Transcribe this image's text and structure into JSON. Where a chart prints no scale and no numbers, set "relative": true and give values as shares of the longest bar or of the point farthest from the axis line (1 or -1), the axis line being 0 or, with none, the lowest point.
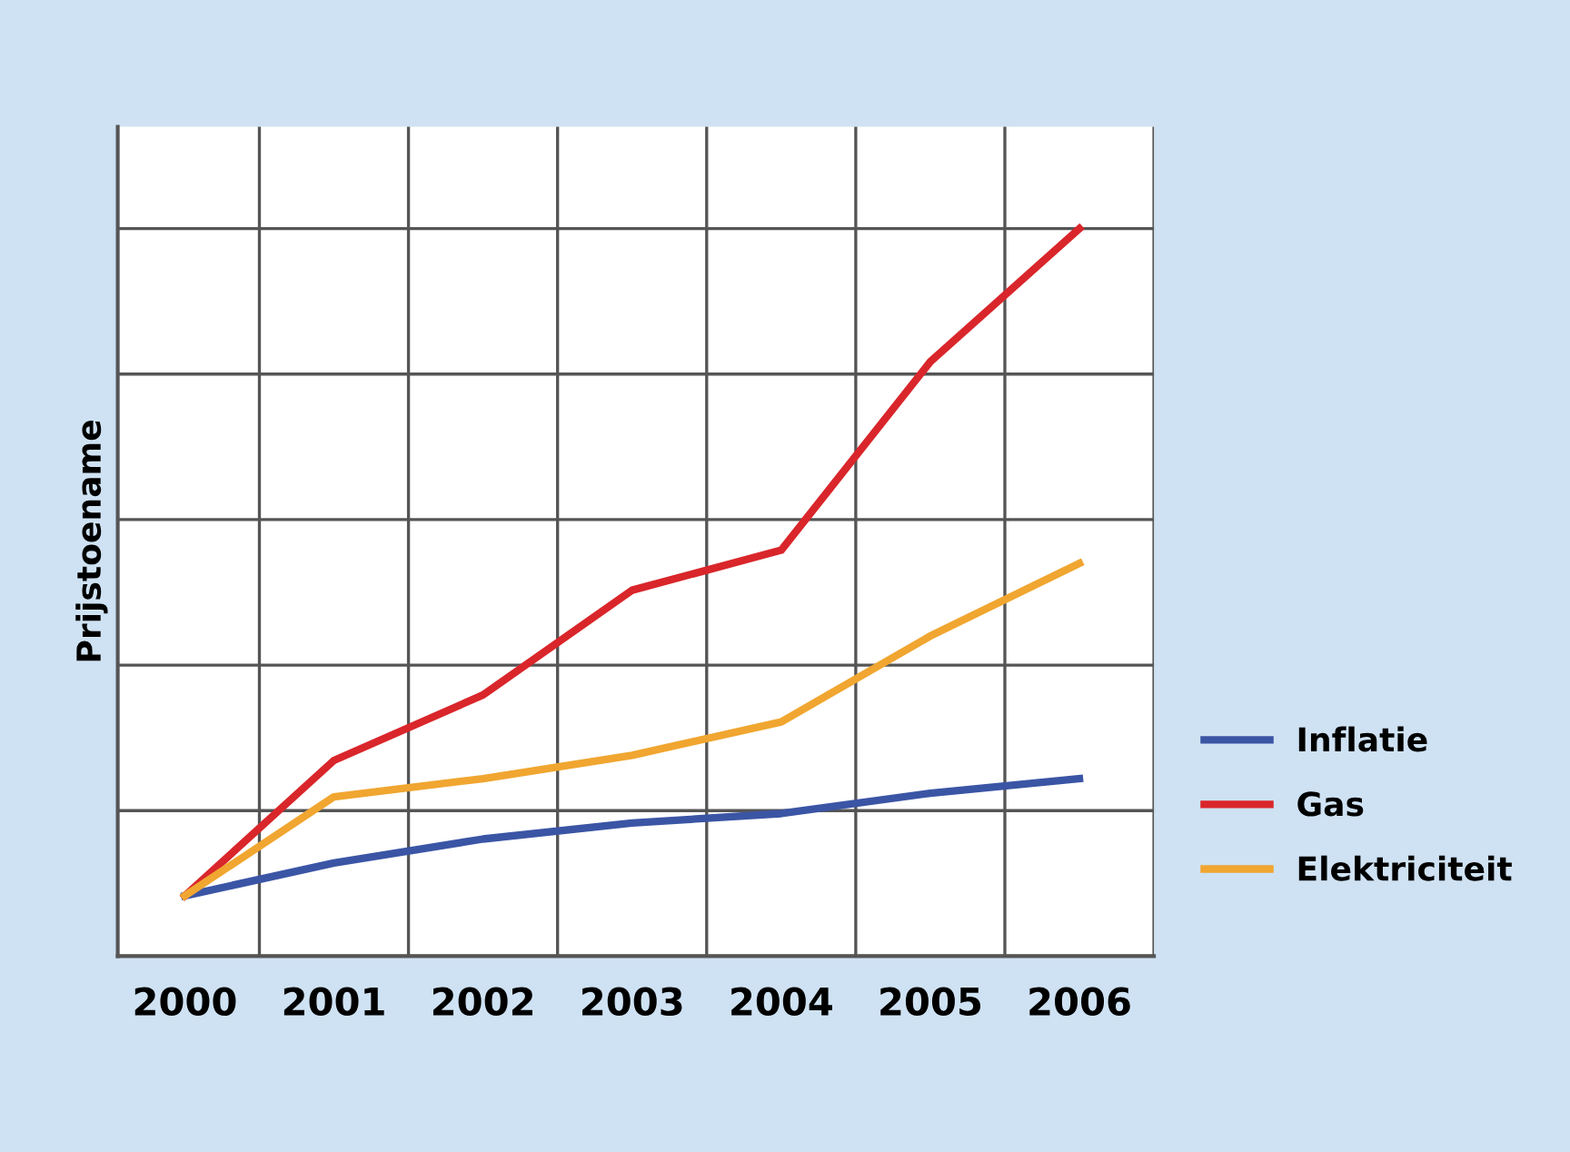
{
  "chart_data": {
    "type": "line",
    "ylabel": "Prijstoename",
    "relative": true,
    "categories": [
      "2000",
      "2001",
      "2002",
      "2003",
      "2004",
      "2005",
      "2006"
    ],
    "series": [
      {
        "name": "Inflatie",
        "color": "#3b55a5",
        "values": [
          0.083,
          0.128,
          0.161,
          0.183,
          0.196,
          0.224,
          0.244
        ]
      },
      {
        "name": "Gas",
        "color": "#d9262b",
        "values": [
          0.083,
          0.269,
          0.359,
          0.503,
          0.558,
          0.817,
          1.0
        ]
      },
      {
        "name": "Elektriciteit",
        "color": "#f0a630",
        "values": [
          0.083,
          0.219,
          0.244,
          0.276,
          0.322,
          0.44,
          0.54
        ]
      }
    ],
    "grid": true,
    "legend": "right",
    "marker": "none",
    "line_style": "solid"
  }
}
